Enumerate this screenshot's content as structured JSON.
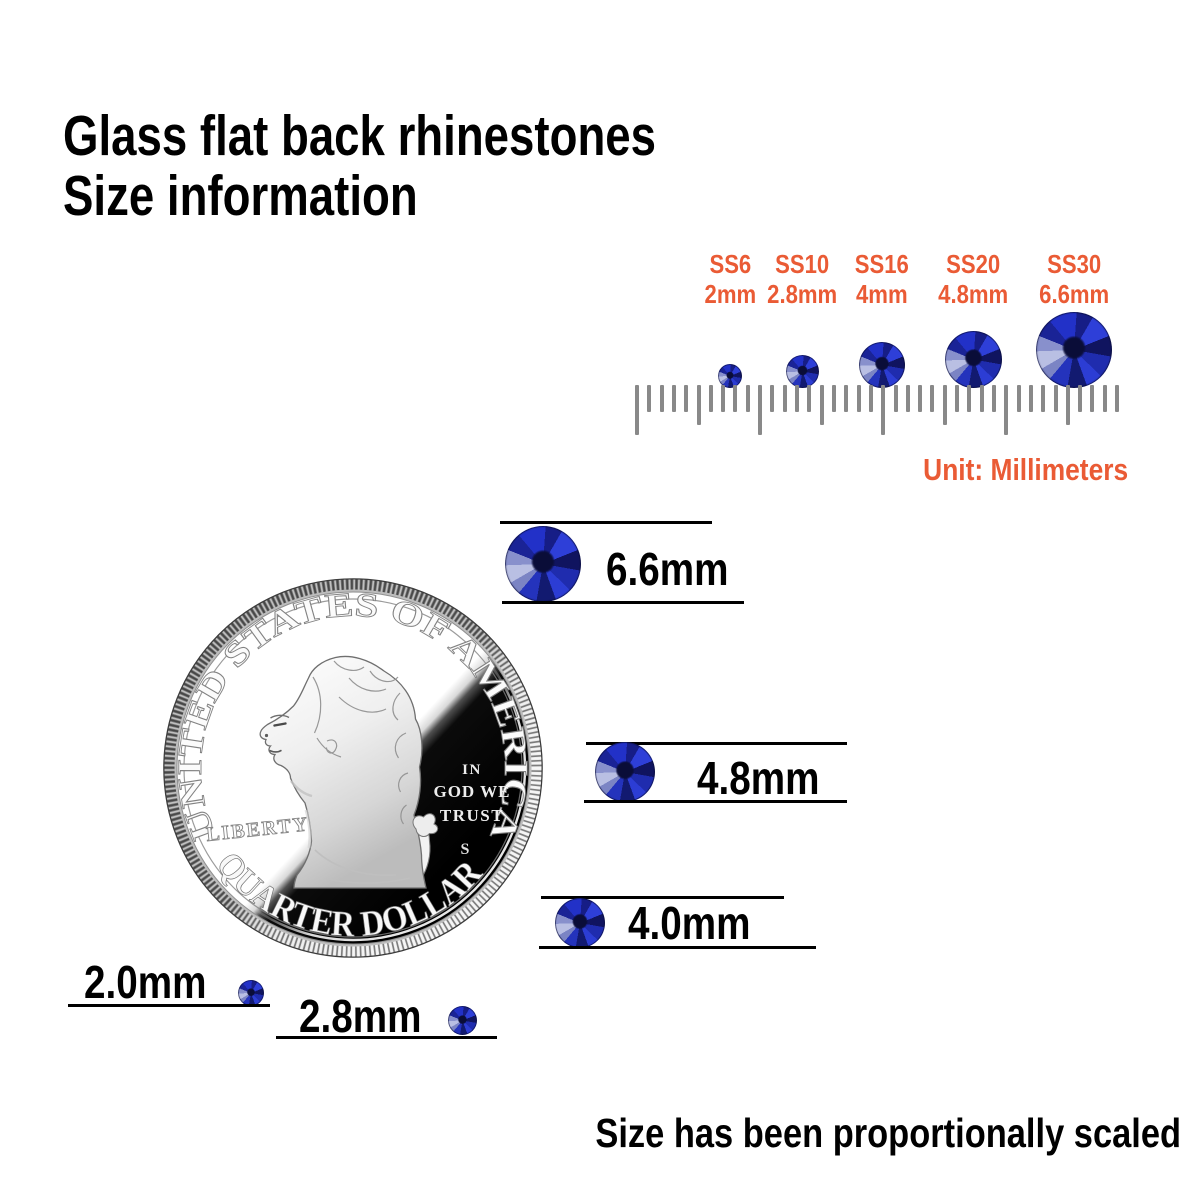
{
  "title": {
    "line1": "Glass flat back rhinestones",
    "line2": "Size information"
  },
  "size_chart": {
    "columns": [
      {
        "ss": "SS6",
        "mm": "2mm"
      },
      {
        "ss": "SS10",
        "mm": "2.8mm"
      },
      {
        "ss": "SS16",
        "mm": "4mm"
      },
      {
        "ss": "SS20",
        "mm": "4.8mm"
      },
      {
        "ss": "SS30",
        "mm": "6.6mm"
      }
    ],
    "ruler": {
      "tick_count": 40,
      "major_every": 10,
      "medium_every": 5
    },
    "unit_label": "Unit: Millimeters"
  },
  "coin": {
    "arc_top": "UNITED STATES OF AMERICA",
    "liberty": "LIBERTY",
    "motto": {
      "line1": "IN",
      "line2": "GOD WE",
      "line3": "TRUST"
    },
    "mint_mark": "S",
    "arc_bottom": "QUARTER DOLLAR"
  },
  "measurements": {
    "rows": [
      {
        "label": "6.6mm"
      },
      {
        "label": "4.8mm"
      },
      {
        "label": "4.0mm"
      },
      {
        "label": "2.0mm"
      },
      {
        "label": "2.8mm"
      }
    ]
  },
  "footer": {
    "note": "Size has been proportionally scaled"
  },
  "colors": {
    "accent_orange": "#EA5B35",
    "stone_blue": "#1E2BB8",
    "text": "#000000",
    "ruler_gray": "#898989"
  }
}
